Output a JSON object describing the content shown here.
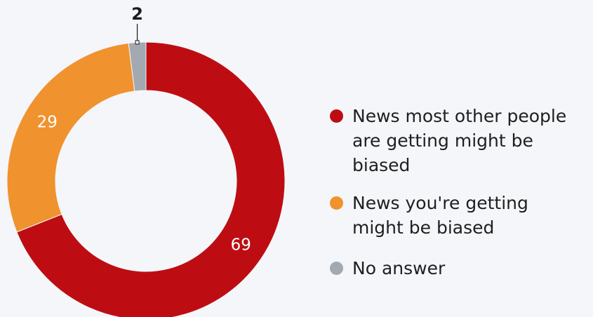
{
  "chart_data": {
    "type": "pie",
    "donut": true,
    "categories": [
      "News most other people are getting might be biased",
      "News you're getting might be biased",
      "No answer"
    ],
    "values": [
      69,
      29,
      2
    ],
    "data_labels": [
      "69",
      "29",
      "2"
    ],
    "colors": [
      "#bd0d13",
      "#f0922e",
      "#a2a9b0"
    ],
    "legend_position": "right",
    "small_slice_callout": true
  },
  "legend": {
    "items": [
      {
        "label": "News most other people are getting might be biased",
        "color": "#bd0d13"
      },
      {
        "label": "News you're getting might be biased",
        "color": "#f0922e"
      },
      {
        "label": "No answer",
        "color": "#a2a9b0"
      }
    ]
  }
}
